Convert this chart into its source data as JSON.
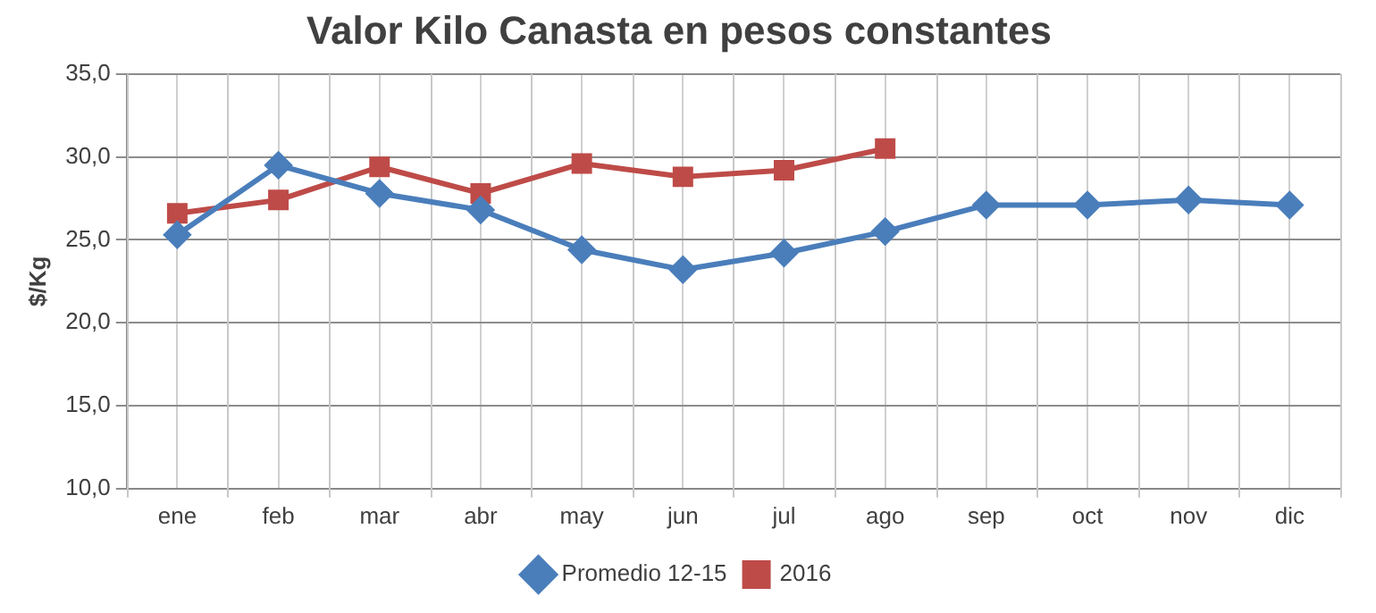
{
  "chart_data": {
    "type": "line",
    "title": "Valor Kilo Canasta en pesos constantes",
    "ylabel": "$/Kg",
    "categories": [
      "ene",
      "feb",
      "mar",
      "abr",
      "may",
      "jun",
      "jul",
      "ago",
      "sep",
      "oct",
      "nov",
      "dic"
    ],
    "series": [
      {
        "name": "Promedio 12-15",
        "color": "#4a7ebb",
        "marker": "diamond",
        "values": [
          25.3,
          29.5,
          27.8,
          26.8,
          24.4,
          23.2,
          24.2,
          25.5,
          27.1,
          27.1,
          27.4,
          27.1
        ]
      },
      {
        "name": "2016",
        "color": "#be4b48",
        "marker": "square",
        "values": [
          26.6,
          27.4,
          29.4,
          27.8,
          29.6,
          28.8,
          29.2,
          30.5,
          null,
          null,
          null,
          null
        ]
      }
    ],
    "ylim": [
      10,
      35
    ],
    "yticks": [
      {
        "value": 10,
        "label": "10,0"
      },
      {
        "value": 15,
        "label": "15,0"
      },
      {
        "value": 20,
        "label": "20,0"
      },
      {
        "value": 25,
        "label": "25,0"
      },
      {
        "value": 30,
        "label": "30,0"
      },
      {
        "value": 35,
        "label": "35,0"
      }
    ],
    "grid": true,
    "legend": "bottom"
  }
}
